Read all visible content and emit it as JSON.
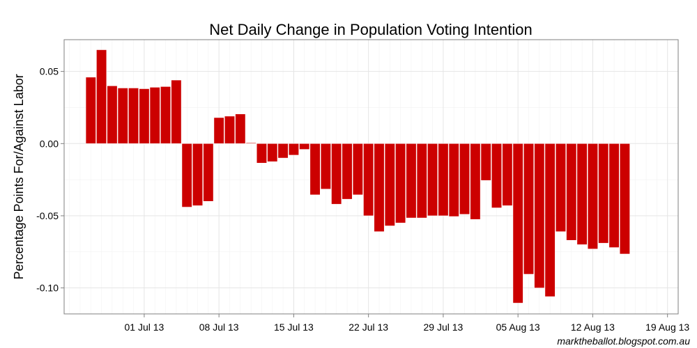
{
  "chart_data": {
    "type": "bar",
    "title": "Net Daily Change in Population Voting Intention",
    "xlabel": "",
    "ylabel": "Percentage Points For/Against Labor",
    "credit": "marktheballot.blogspot.com.au",
    "bar_color": "#cc0000",
    "start_date": "2013-06-26",
    "x_ticks": [
      "01 Jul 13",
      "08 Jul 13",
      "15 Jul 13",
      "22 Jul 13",
      "29 Jul 13",
      "05 Aug 13",
      "12 Aug 13",
      "19 Aug 13"
    ],
    "x_tick_day_offsets": [
      5,
      12,
      19,
      26,
      33,
      40,
      47,
      54
    ],
    "x_range_days": [
      -2.5,
      55
    ],
    "y_ticks": [
      0.05,
      0.0,
      -0.05,
      -0.1
    ],
    "y_tick_labels": [
      "0.05",
      "0.00",
      "-0.05",
      "-0.10"
    ],
    "ylim": [
      -0.118,
      0.072
    ],
    "values": [
      0.046,
      0.065,
      0.04,
      0.0385,
      0.0385,
      0.038,
      0.039,
      0.0395,
      0.044,
      -0.044,
      -0.043,
      -0.04,
      0.018,
      0.019,
      0.0205,
      0.0005,
      -0.0135,
      -0.0125,
      -0.01,
      -0.008,
      -0.004,
      -0.0355,
      -0.0315,
      -0.042,
      -0.0385,
      -0.0355,
      -0.05,
      -0.061,
      -0.057,
      -0.055,
      -0.0515,
      -0.0515,
      -0.05,
      -0.05,
      -0.0505,
      -0.049,
      -0.0525,
      -0.0255,
      -0.0445,
      -0.043,
      -0.1105,
      -0.0905,
      -0.1,
      -0.106,
      -0.061,
      -0.067,
      -0.07,
      -0.073,
      -0.069,
      -0.072,
      -0.0765
    ]
  }
}
